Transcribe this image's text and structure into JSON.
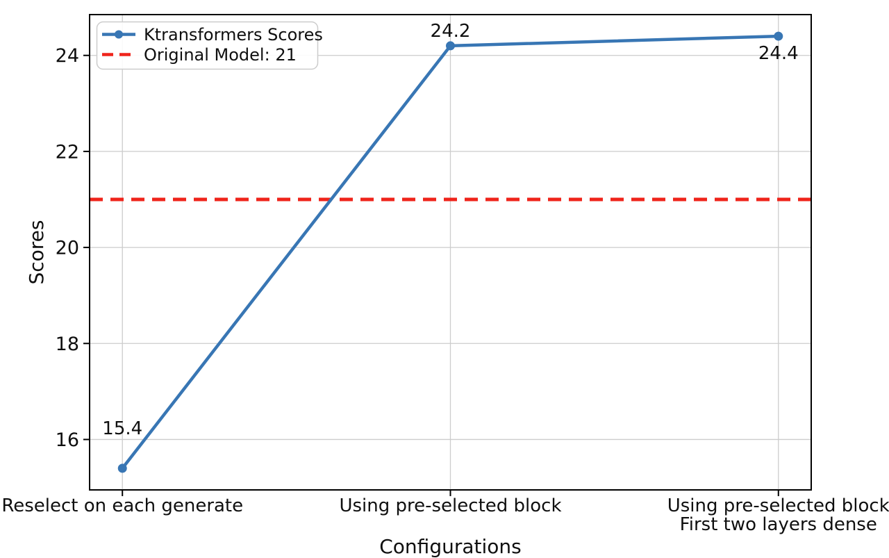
{
  "chart_data": {
    "type": "line",
    "title": "",
    "xlabel": "Configurations",
    "ylabel": "Scores",
    "categories": [
      "Reselect on each generate",
      "Using pre-selected block",
      "Using pre-selected block\nFirst two layers dense"
    ],
    "series": [
      {
        "name": "Ktransformers Scores",
        "values": [
          15.4,
          24.2,
          24.4
        ],
        "data_labels": [
          "15.4",
          "24.2",
          "24.4"
        ],
        "color": "#3876b4",
        "marker": "circle",
        "line_style": "solid"
      }
    ],
    "reference_line": {
      "name": "Original Model: 21",
      "value": 21,
      "color": "#ef241b",
      "line_style": "dashed"
    },
    "yticks": [
      16,
      18,
      20,
      22,
      24
    ],
    "ylim": [
      14.95,
      24.85
    ],
    "grid": true,
    "grid_color": "#cccccc",
    "axis_color": "#000000",
    "legend": {
      "position": "upper left"
    }
  }
}
